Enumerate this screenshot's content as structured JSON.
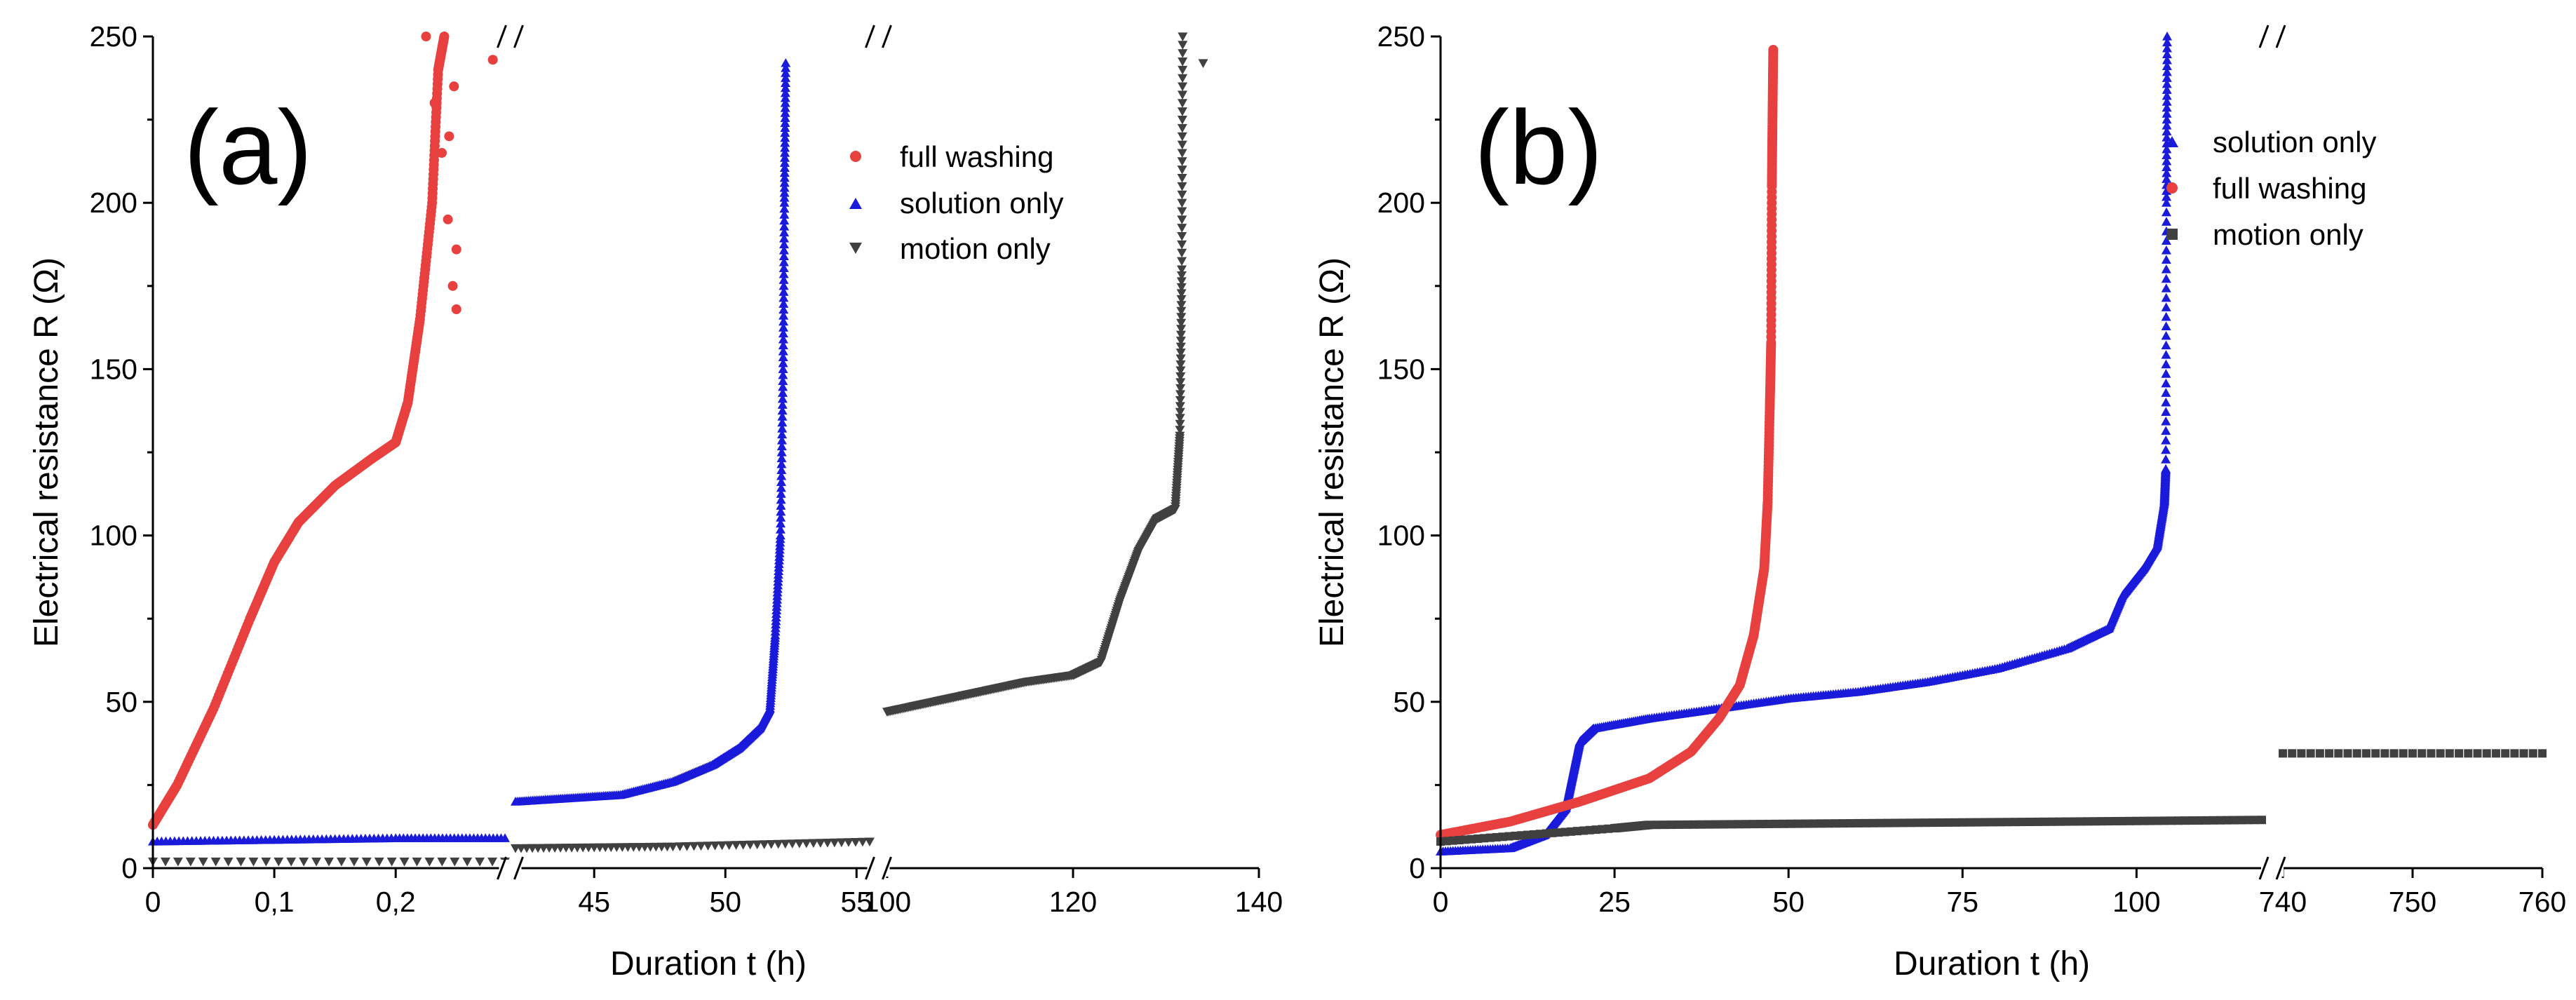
{
  "chart_data": [
    {
      "panel": "(a)",
      "type": "scatter",
      "ylabel": "Electrical resistance R (Ω)",
      "xlabel": "Duration t (h)",
      "ylim": [
        0,
        250
      ],
      "yticks": [
        "0",
        "50",
        "100",
        "150",
        "200",
        "250"
      ],
      "x_segments": [
        {
          "range": [
            0,
            0.29
          ],
          "ticks": [
            {
              "v": 0,
              "label": "0"
            },
            {
              "v": 0.1,
              "label": "0,1"
            },
            {
              "v": 0.2,
              "label": "0,2"
            }
          ]
        },
        {
          "range": [
            42,
            55.5
          ],
          "ticks": [
            {
              "v": 45,
              "label": "45"
            },
            {
              "v": 50,
              "label": "50"
            },
            {
              "v": 55,
              "label": "55"
            }
          ]
        },
        {
          "range": [
            100,
            140
          ],
          "ticks": [
            {
              "v": 100,
              "label": "100"
            },
            {
              "v": 120,
              "label": "120"
            },
            {
              "v": 140,
              "label": "140"
            }
          ]
        }
      ],
      "legend_position": "top-right",
      "series": [
        {
          "name": "full washing",
          "marker": "circle",
          "color": "#e8403f",
          "segment": 0,
          "curve": [
            [
              0,
              13
            ],
            [
              0.02,
              25
            ],
            [
              0.05,
              48
            ],
            [
              0.08,
              75
            ],
            [
              0.1,
              92
            ],
            [
              0.12,
              104
            ],
            [
              0.15,
              115
            ],
            [
              0.18,
              123
            ],
            [
              0.2,
              128
            ],
            [
              0.21,
              140
            ],
            [
              0.22,
              165
            ],
            [
              0.23,
              200
            ],
            [
              0.235,
              240
            ],
            [
              0.24,
              250
            ]
          ],
          "outliers": [
            [
              0.225,
              250
            ],
            [
              0.232,
              230
            ],
            [
              0.238,
              215
            ],
            [
              0.243,
              195
            ],
            [
              0.247,
              175
            ],
            [
              0.25,
              168
            ],
            [
              0.25,
              186
            ],
            [
              0.244,
              220
            ],
            [
              0.248,
              235
            ],
            [
              0.28,
              243
            ]
          ]
        },
        {
          "name": "solution only",
          "marker": "triangle-up",
          "color": "#1a1adb",
          "segments": [
            {
              "segment": 0,
              "curve": [
                [
                  0,
                  8
                ],
                [
                  0.1,
                  8.5
                ],
                [
                  0.2,
                  9
                ],
                [
                  0.29,
                  9
                ]
              ]
            },
            {
              "segment": 1,
              "curve": [
                [
                  42,
                  20
                ],
                [
                  44,
                  21
                ],
                [
                  46,
                  22
                ],
                [
                  48,
                  26
                ],
                [
                  49.5,
                  31
                ],
                [
                  50.5,
                  36
                ],
                [
                  51.3,
                  42
                ],
                [
                  51.7,
                  48
                ],
                [
                  51.9,
                  70
                ],
                [
                  52.1,
                  100
                ],
                [
                  52.2,
                  150
                ],
                [
                  52.25,
                  200
                ],
                [
                  52.3,
                  242
                ]
              ]
            }
          ]
        },
        {
          "name": "motion only",
          "marker": "triangle-down",
          "color": "#404040",
          "segments": [
            {
              "segment": 0,
              "curve": [
                [
                  0,
                  2
                ],
                [
                  0.29,
                  2
                ]
              ]
            },
            {
              "segment": 1,
              "curve": [
                [
                  42,
                  6
                ],
                [
                  48,
                  6.5
                ],
                [
                  55.5,
                  8
                ]
              ]
            },
            {
              "segment": 2,
              "curve": [
                [
                  100,
                  47
                ],
                [
                  105,
                  50
                ],
                [
                  110,
                  53
                ],
                [
                  115,
                  56
                ],
                [
                  120,
                  58
                ],
                [
                  123,
                  62
                ],
                [
                  125,
                  80
                ],
                [
                  127,
                  95
                ],
                [
                  129,
                  105
                ],
                [
                  131,
                  108
                ],
                [
                  131.5,
                  130
                ],
                [
                  131.7,
                  180
                ],
                [
                  131.8,
                  250
                ]
              ],
              "outliers": [
                [
                  134,
                  242
                ]
              ]
            }
          ]
        }
      ]
    },
    {
      "panel": "(b)",
      "type": "scatter",
      "ylabel": "Electrical resistance R (Ω)",
      "xlabel": "Duration t (h)",
      "ylim": [
        0,
        250
      ],
      "yticks": [
        "0",
        "50",
        "100",
        "150",
        "200",
        "250"
      ],
      "x_segments": [
        {
          "range": [
            0,
            118
          ],
          "ticks": [
            {
              "v": 0,
              "label": "0"
            },
            {
              "v": 25,
              "label": "25"
            },
            {
              "v": 50,
              "label": "50"
            },
            {
              "v": 75,
              "label": "75"
            },
            {
              "v": 100,
              "label": "100"
            }
          ]
        },
        {
          "range": [
            740,
            760
          ],
          "ticks": [
            {
              "v": 740,
              "label": "740"
            },
            {
              "v": 750,
              "label": "750"
            },
            {
              "v": 760,
              "label": "760"
            }
          ]
        }
      ],
      "legend_position": "top-right",
      "series": [
        {
          "name": "solution only",
          "marker": "triangle-up",
          "color": "#1a1adb",
          "segment": 0,
          "curve": [
            [
              0,
              5
            ],
            [
              10,
              6
            ],
            [
              15,
              10
            ],
            [
              18,
              18
            ],
            [
              19,
              28
            ],
            [
              20,
              38
            ],
            [
              22,
              42
            ],
            [
              30,
              45
            ],
            [
              40,
              48
            ],
            [
              50,
              51
            ],
            [
              60,
              53
            ],
            [
              70,
              56
            ],
            [
              80,
              60
            ],
            [
              90,
              66
            ],
            [
              96,
              72
            ],
            [
              98,
              82
            ],
            [
              101,
              90
            ],
            [
              103,
              97
            ],
            [
              104,
              110
            ],
            [
              104.2,
              120
            ],
            [
              104.3,
              200
            ],
            [
              104.4,
              250
            ]
          ]
        },
        {
          "name": "full washing",
          "marker": "circle",
          "color": "#e8403f",
          "segment": 0,
          "curve": [
            [
              0,
              10
            ],
            [
              10,
              14
            ],
            [
              20,
              20
            ],
            [
              30,
              27
            ],
            [
              36,
              35
            ],
            [
              40,
              45
            ],
            [
              43,
              55
            ],
            [
              45,
              70
            ],
            [
              46.5,
              90
            ],
            [
              47,
              110
            ],
            [
              47.3,
              138
            ],
            [
              47.5,
              158
            ],
            [
              47.6,
              205
            ],
            [
              47.7,
              226
            ],
            [
              47.8,
              246
            ]
          ]
        },
        {
          "name": "motion only",
          "marker": "square",
          "color": "#404040",
          "segments": [
            {
              "segment": 0,
              "curve": [
                [
                  0,
                  8
                ],
                [
                  25,
                  12
                ],
                [
                  30,
                  13
                ],
                [
                  60,
                  13.5
                ],
                [
                  90,
                  14
                ],
                [
                  118,
                  14.5
                ]
              ]
            },
            {
              "segment": 1,
              "curve": [
                [
                  740,
                  34.5
                ],
                [
                  760,
                  34.5
                ]
              ]
            }
          ]
        }
      ]
    }
  ]
}
